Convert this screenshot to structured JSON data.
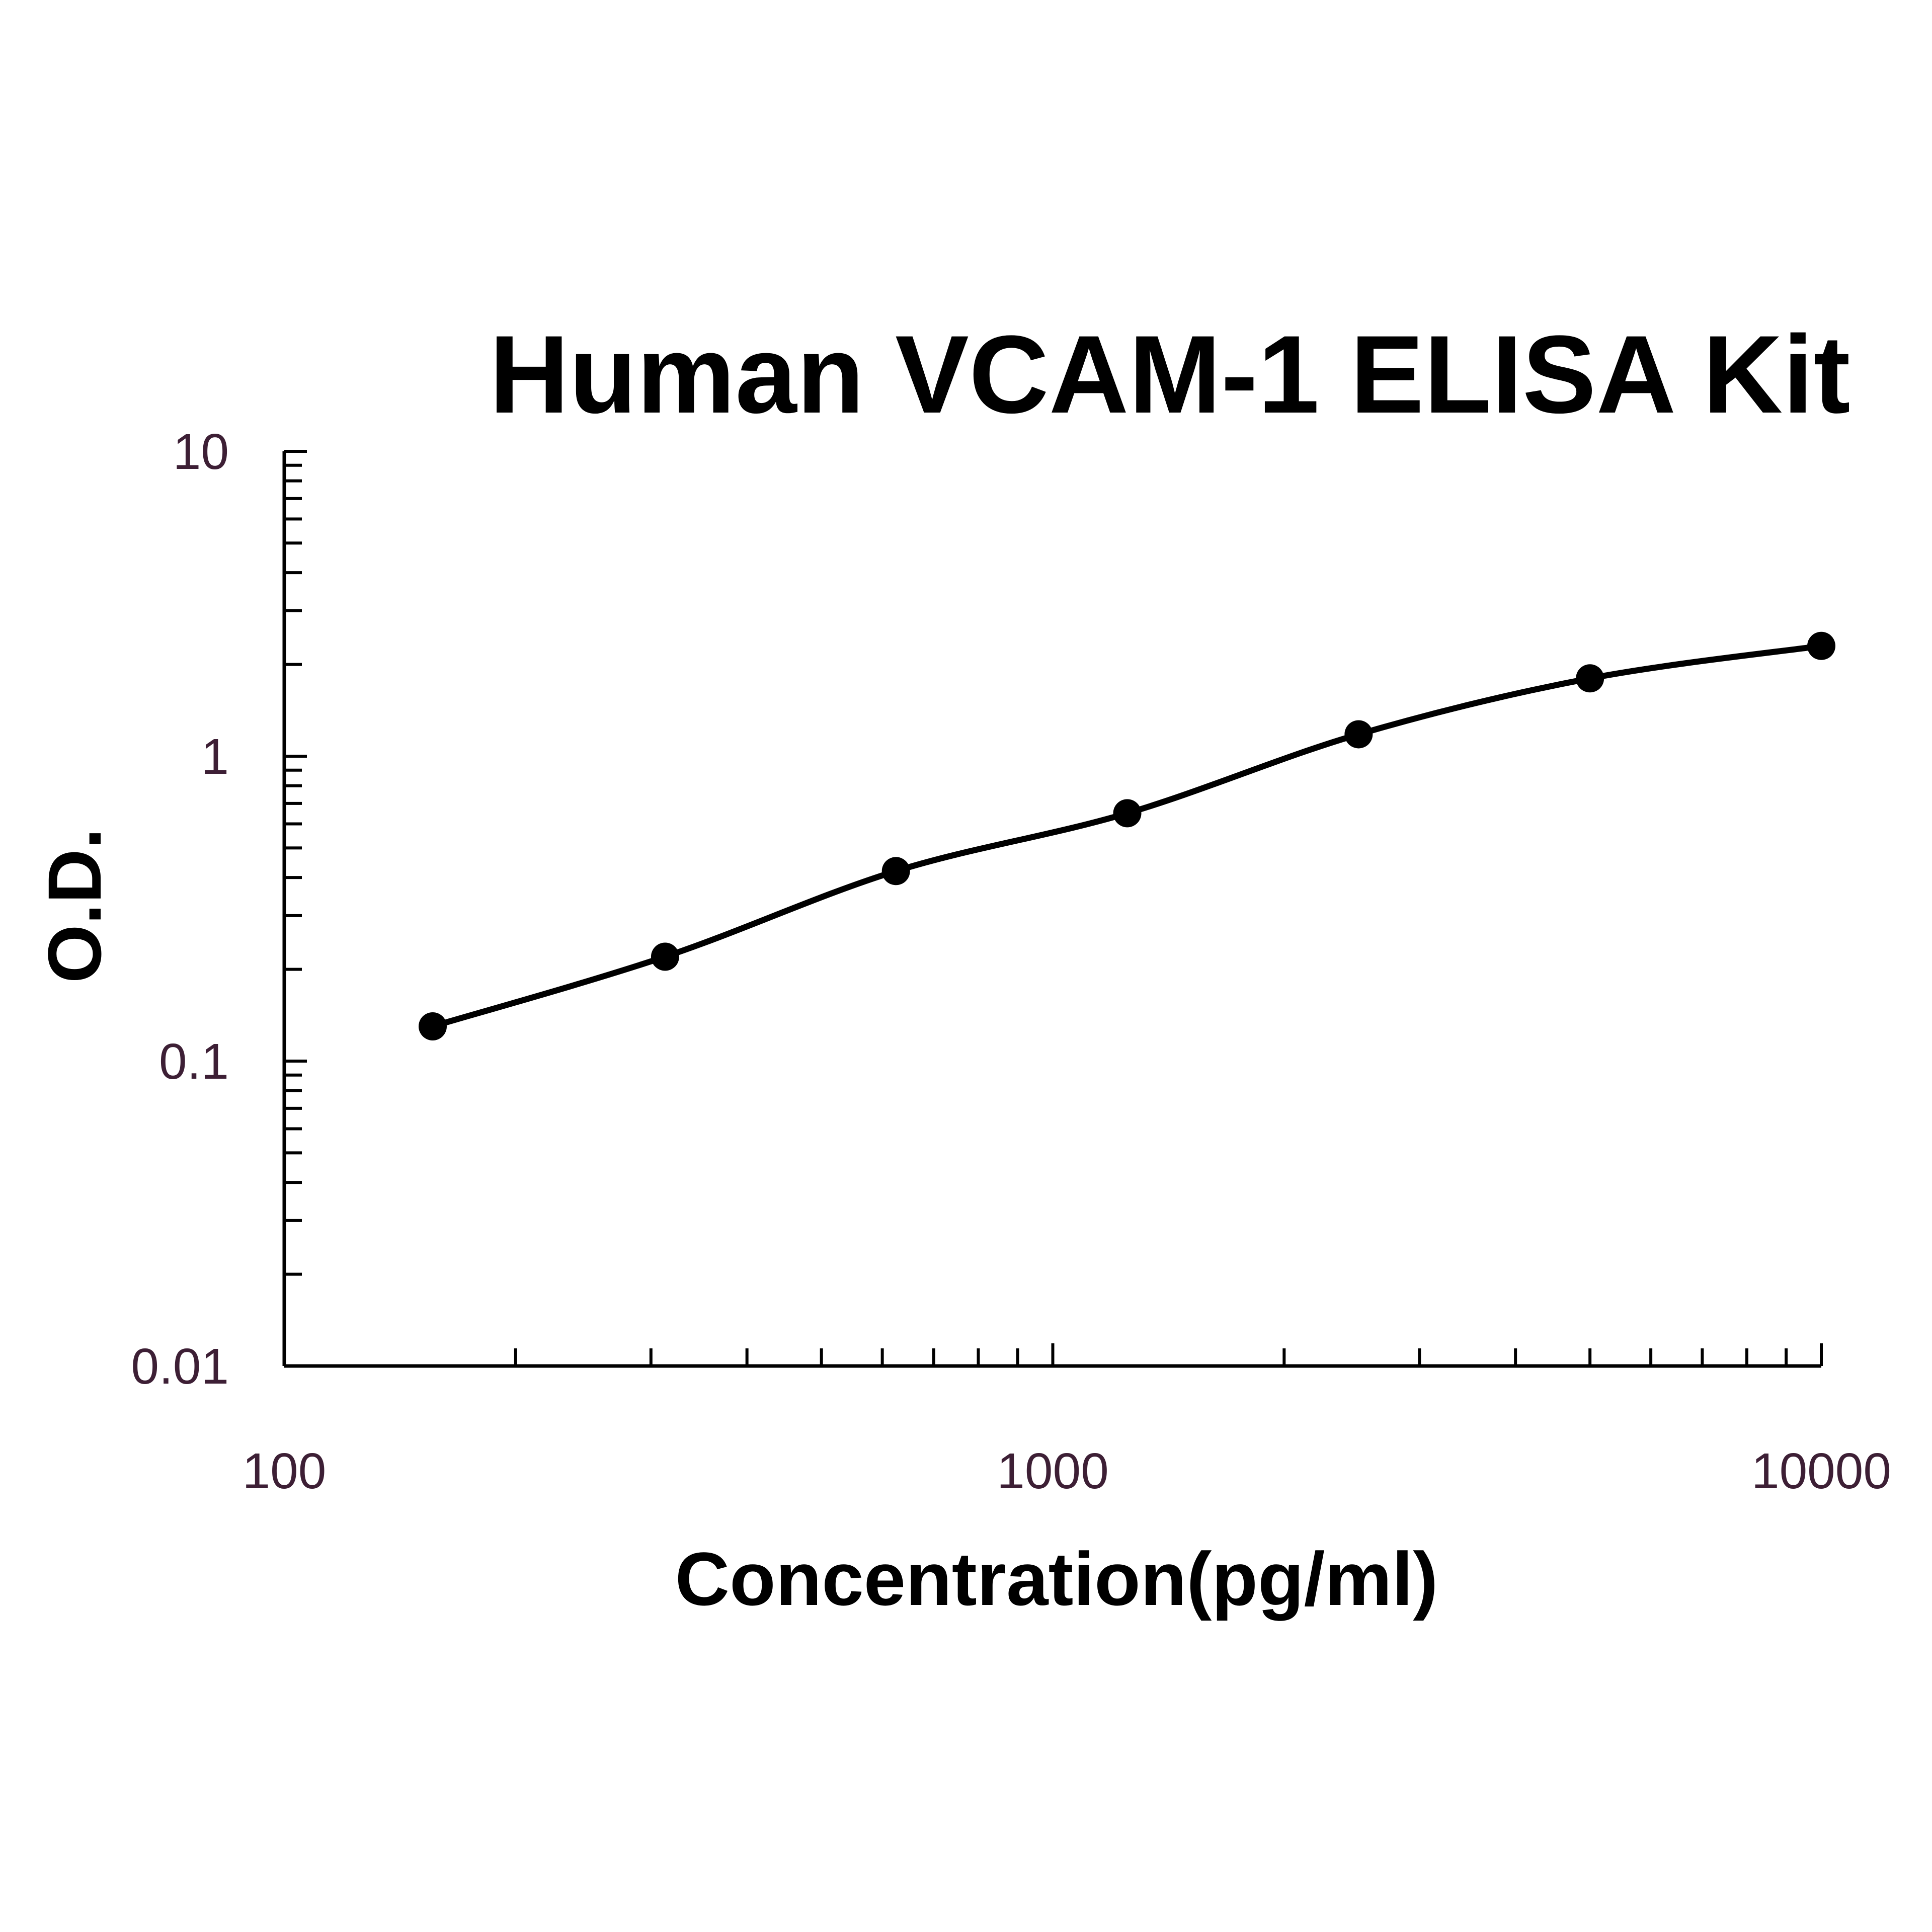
{
  "chart_data": {
    "type": "scatter",
    "title": "Human VCAM-1 ELISA Kit",
    "xlabel": "Concentration(pg/ml)",
    "ylabel": "O.D.",
    "xscale": "log",
    "yscale": "log",
    "xlim": [
      100,
      10000
    ],
    "ylim": [
      0.01,
      10
    ],
    "x_tick_labels": [
      "100",
      "1000",
      "10000"
    ],
    "y_tick_labels": [
      "0.01",
      "0.1",
      "1",
      "10"
    ],
    "grid": false,
    "legend": "none",
    "fit_line": "smooth curve through points",
    "series": [
      {
        "x": [
          156,
          313,
          625,
          1250,
          2500,
          5000,
          10000
        ],
        "y": [
          0.13,
          0.22,
          0.42,
          0.65,
          1.18,
          1.8,
          2.3
        ]
      }
    ],
    "colors": {
      "marker": "#000000",
      "line": "#000000",
      "tick_text": "#3d1f35"
    }
  }
}
